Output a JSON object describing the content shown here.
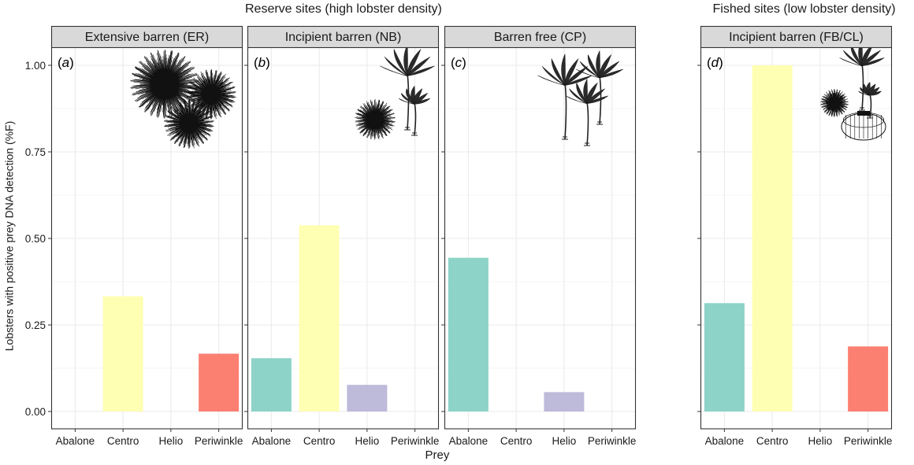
{
  "figure": {
    "group_titles": [
      "Reserve sites (high lobster density)",
      "Fished sites (low lobster density)"
    ],
    "ylabel": "Lobsters with positive prey DNA detection (%F)",
    "xlabel": "Prey"
  },
  "colors": {
    "Abalone": "#8dd3c7",
    "Centro": "#ffffb3",
    "Helio": "#bebada",
    "Periwinkle": "#fb8072",
    "strip_fill": "#d9d9d9",
    "grid": "#ebebeb"
  },
  "chart_data": [
    {
      "type": "bar",
      "group": "Reserve sites (high lobster density)",
      "strip_title": "Extensive barren (ER)",
      "panel_label": "a",
      "icon": "sea-urchin-icon",
      "categories": [
        "Abalone",
        "Centro",
        "Helio",
        "Periwinkle"
      ],
      "values": [
        0,
        0.333,
        0,
        0.167
      ],
      "xlabel": "Prey",
      "ylabel": "Lobsters with positive prey DNA detection (%F)",
      "yticks": [
        "0.00",
        "0.25",
        "0.50",
        "0.75",
        "1.00"
      ],
      "ylim": [
        0,
        1.0
      ],
      "grid": true
    },
    {
      "type": "bar",
      "group": "Reserve sites (high lobster density)",
      "strip_title": "Incipient barren (NB)",
      "panel_label": "b",
      "icon": "urchin-and-kelp-icon",
      "categories": [
        "Abalone",
        "Centro",
        "Helio",
        "Periwinkle"
      ],
      "values": [
        0.154,
        0.538,
        0.077,
        0
      ],
      "xlabel": "Prey",
      "ylim": [
        0,
        1.0
      ],
      "grid": true
    },
    {
      "type": "bar",
      "group": "Reserve sites (high lobster density)",
      "strip_title": "Barren free (CP)",
      "panel_label": "c",
      "icon": "kelp-forest-icon",
      "categories": [
        "Abalone",
        "Centro",
        "Helio",
        "Periwinkle"
      ],
      "values": [
        0.444,
        0,
        0.056,
        0
      ],
      "xlabel": "Prey",
      "ylim": [
        0,
        1.0
      ],
      "grid": true
    },
    {
      "type": "bar",
      "group": "Fished sites (low lobster density)",
      "strip_title": "Incipient barren (FB/CL)",
      "panel_label": "d",
      "icon": "urchin-kelp-trap-icon",
      "categories": [
        "Abalone",
        "Centro",
        "Helio",
        "Periwinkle"
      ],
      "values": [
        0.313,
        1.0,
        0,
        0.188
      ],
      "xlabel": "Prey",
      "ylim": [
        0,
        1.0
      ],
      "grid": true
    }
  ]
}
